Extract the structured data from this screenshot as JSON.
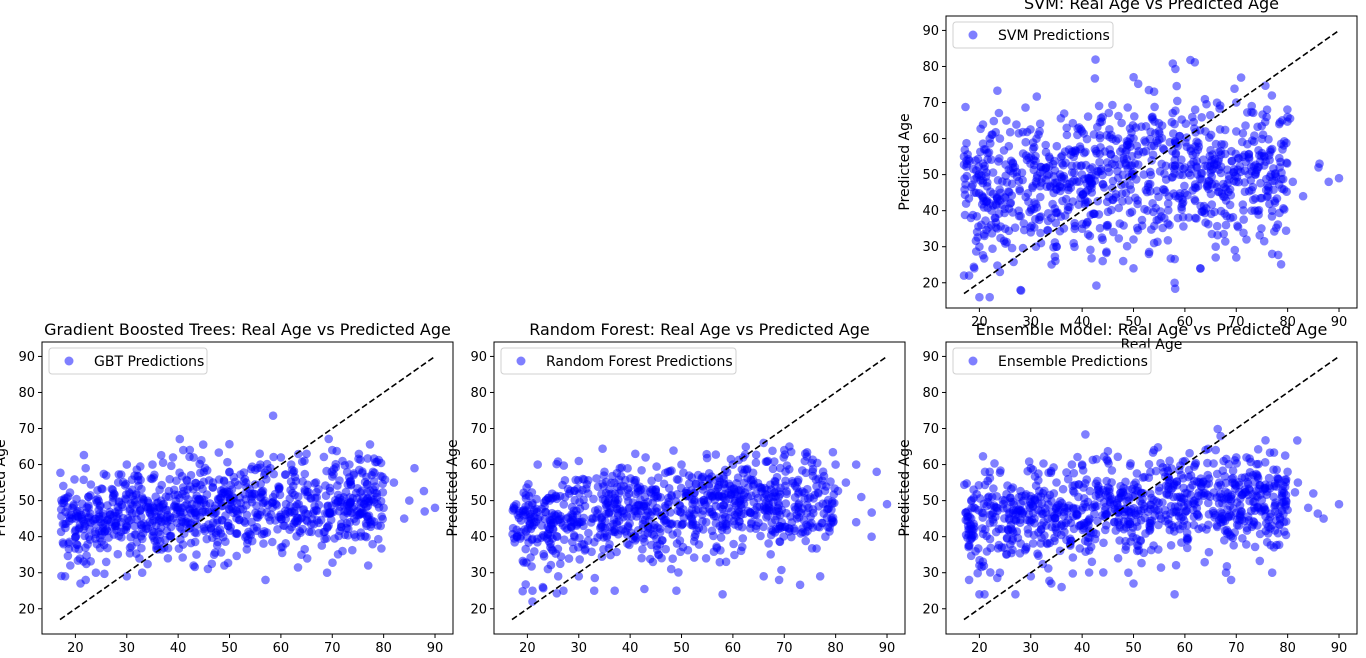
{
  "chart_data": [
    {
      "type": "scatter",
      "panel": "svm",
      "title": "SVM: Real Age vs Predicted Age",
      "xlabel": "Real Age",
      "ylabel": "Predicted Age",
      "legend": "SVM Predictions",
      "legend_position": "top-left",
      "xlim": [
        13.5,
        93.5
      ],
      "ylim": [
        13,
        94
      ],
      "xticks": [
        20,
        30,
        40,
        50,
        60,
        70,
        80,
        90
      ],
      "yticks": [
        20,
        30,
        40,
        50,
        60,
        70,
        80,
        90
      ],
      "diagonal": [
        17,
        90
      ],
      "series_color": "#0000ff",
      "spread": 10,
      "points": [
        [
          20,
          16
        ],
        [
          22,
          16
        ],
        [
          28,
          18
        ],
        [
          58,
          20
        ],
        [
          17,
          22
        ],
        [
          18,
          22
        ],
        [
          24,
          23
        ],
        [
          19,
          24
        ],
        [
          63,
          24
        ],
        [
          50,
          24
        ],
        [
          48,
          26
        ],
        [
          44,
          26
        ],
        [
          70,
          27
        ],
        [
          66,
          27
        ],
        [
          53,
          28
        ],
        [
          77,
          28
        ],
        [
          31,
          30
        ],
        [
          35,
          30
        ],
        [
          32,
          31
        ],
        [
          54,
          31
        ],
        [
          20,
          30
        ],
        [
          66,
          30
        ],
        [
          72,
          32
        ],
        [
          50,
          32
        ],
        [
          21,
          33
        ],
        [
          30,
          34
        ],
        [
          40,
          35
        ],
        [
          25,
          35
        ],
        [
          57,
          36
        ],
        [
          45,
          36
        ],
        [
          68,
          36
        ],
        [
          23,
          38
        ],
        [
          62,
          38
        ],
        [
          34,
          38
        ],
        [
          73,
          40
        ],
        [
          77,
          40
        ],
        [
          26,
          42
        ],
        [
          46,
          43
        ],
        [
          83,
          44
        ],
        [
          59,
          44
        ],
        [
          19,
          45
        ],
        [
          35,
          46
        ],
        [
          68,
          46
        ],
        [
          81,
          48
        ],
        [
          88,
          48
        ],
        [
          90,
          49
        ],
        [
          52,
          50
        ],
        [
          42,
          52
        ],
        [
          60,
          52
        ],
        [
          86,
          52
        ],
        [
          30,
          55
        ],
        [
          75,
          56
        ],
        [
          17,
          55
        ],
        [
          79,
          57
        ],
        [
          54,
          58
        ],
        [
          24,
          60
        ],
        [
          47,
          60
        ],
        [
          22,
          60
        ],
        [
          64,
          62
        ],
        [
          70,
          62
        ],
        [
          37,
          63
        ],
        [
          58,
          64
        ],
        [
          44,
          66
        ],
        [
          62,
          68
        ],
        [
          76,
          68
        ],
        [
          70,
          70
        ],
        [
          54,
          73
        ],
        [
          73,
          69
        ],
        [
          80,
          66
        ]
      ],
      "band": [
        [
          17,
          45
        ],
        [
          20,
          46
        ],
        [
          25,
          46
        ],
        [
          30,
          47
        ],
        [
          35,
          48
        ],
        [
          40,
          49
        ],
        [
          45,
          49
        ],
        [
          50,
          50
        ],
        [
          55,
          51
        ],
        [
          60,
          52
        ],
        [
          65,
          51
        ],
        [
          70,
          50
        ],
        [
          75,
          50
        ],
        [
          80,
          51
        ],
        [
          85,
          51
        ],
        [
          90,
          50
        ]
      ]
    },
    {
      "type": "scatter",
      "panel": "gbt",
      "title": "Gradient Boosted Trees: Real Age vs Predicted Age",
      "xlabel": "",
      "ylabel": "Predicted Age",
      "legend": "GBT Predictions",
      "legend_position": "top-left",
      "xlim": [
        13.5,
        93.5
      ],
      "ylim": [
        13,
        94
      ],
      "xticks": [
        20,
        30,
        40,
        50,
        60,
        70,
        80,
        90
      ],
      "yticks": [
        20,
        30,
        40,
        50,
        60,
        70,
        80,
        90
      ],
      "diagonal": [
        17,
        90
      ],
      "series_color": "#0000ff",
      "spread": 6.5,
      "points": [
        [
          21,
          27
        ],
        [
          18,
          29
        ],
        [
          22,
          28
        ],
        [
          24,
          30
        ],
        [
          30,
          29
        ],
        [
          33,
          30
        ],
        [
          57,
          28
        ],
        [
          69,
          30
        ],
        [
          77,
          32
        ],
        [
          19,
          32
        ],
        [
          43,
          32
        ],
        [
          49,
          32
        ],
        [
          26,
          33
        ],
        [
          38,
          34
        ],
        [
          60,
          37
        ],
        [
          64,
          35
        ],
        [
          72,
          36
        ],
        [
          47,
          35
        ],
        [
          84,
          45
        ],
        [
          88,
          47
        ],
        [
          90,
          48
        ],
        [
          80,
          48
        ],
        [
          85,
          50
        ],
        [
          78,
          53
        ],
        [
          82,
          55
        ],
        [
          86,
          59
        ],
        [
          41,
          64
        ],
        [
          43,
          62
        ],
        [
          39,
          62
        ],
        [
          62,
          60
        ],
        [
          65,
          63
        ],
        [
          70,
          64
        ],
        [
          72,
          61
        ],
        [
          60,
          62
        ],
        [
          22,
          59
        ],
        [
          26,
          57
        ],
        [
          30,
          60
        ],
        [
          35,
          60
        ],
        [
          45,
          58
        ],
        [
          50,
          58
        ],
        [
          56,
          60
        ]
      ],
      "band": [
        [
          17,
          44
        ],
        [
          20,
          44
        ],
        [
          25,
          45
        ],
        [
          30,
          46
        ],
        [
          35,
          46
        ],
        [
          40,
          48
        ],
        [
          45,
          48
        ],
        [
          50,
          48
        ],
        [
          55,
          49
        ],
        [
          60,
          50
        ],
        [
          65,
          49
        ],
        [
          70,
          48
        ],
        [
          75,
          49
        ],
        [
          80,
          50
        ],
        [
          85,
          50
        ],
        [
          90,
          49
        ]
      ]
    },
    {
      "type": "scatter",
      "panel": "rf",
      "title": "Random Forest: Real Age vs Predicted Age",
      "xlabel": "",
      "ylabel": "Predicted Age",
      "legend": "Random Forest Predictions",
      "legend_position": "top-left",
      "xlim": [
        13.5,
        93.5
      ],
      "ylim": [
        13,
        94
      ],
      "xticks": [
        20,
        30,
        40,
        50,
        60,
        70,
        80,
        90
      ],
      "yticks": [
        20,
        30,
        40,
        50,
        60,
        70,
        80,
        90
      ],
      "diagonal": [
        17,
        90
      ],
      "series_color": "#0000ff",
      "spread": 6.5,
      "points": [
        [
          21,
          22
        ],
        [
          21,
          25
        ],
        [
          23,
          26
        ],
        [
          27,
          25
        ],
        [
          26,
          29
        ],
        [
          33,
          25
        ],
        [
          37,
          25
        ],
        [
          49,
          25
        ],
        [
          58,
          24
        ],
        [
          69,
          28
        ],
        [
          66,
          29
        ],
        [
          77,
          29
        ],
        [
          48,
          31
        ],
        [
          24,
          31
        ],
        [
          30,
          29
        ],
        [
          87,
          40
        ],
        [
          84,
          44
        ],
        [
          90,
          49
        ],
        [
          85,
          51
        ],
        [
          82,
          55
        ],
        [
          84,
          60
        ],
        [
          88,
          58
        ],
        [
          80,
          60
        ],
        [
          43,
          62
        ],
        [
          41,
          63
        ],
        [
          60,
          60
        ],
        [
          66,
          66
        ],
        [
          70,
          64
        ],
        [
          71,
          65
        ],
        [
          62,
          62
        ],
        [
          74,
          61
        ],
        [
          30,
          61
        ],
        [
          22,
          60
        ],
        [
          35,
          58
        ],
        [
          50,
          60
        ]
      ],
      "band": [
        [
          17,
          44
        ],
        [
          20,
          43
        ],
        [
          25,
          44
        ],
        [
          30,
          45
        ],
        [
          35,
          46
        ],
        [
          40,
          47
        ],
        [
          45,
          47
        ],
        [
          50,
          48
        ],
        [
          55,
          49
        ],
        [
          60,
          50
        ],
        [
          65,
          50
        ],
        [
          70,
          49
        ],
        [
          75,
          49
        ],
        [
          80,
          50
        ],
        [
          85,
          50
        ],
        [
          90,
          49
        ]
      ]
    },
    {
      "type": "scatter",
      "panel": "ensemble",
      "title": "Ensemble Model: Real Age vs Predicted Age",
      "xlabel": "",
      "ylabel": "Predicted Age",
      "legend": "Ensemble Predictions",
      "legend_position": "top-left",
      "xlim": [
        13.5,
        93.5
      ],
      "ylim": [
        13,
        94
      ],
      "xticks": [
        20,
        30,
        40,
        50,
        60,
        70,
        80,
        90
      ],
      "yticks": [
        20,
        30,
        40,
        50,
        60,
        70,
        80,
        90
      ],
      "diagonal": [
        17,
        90
      ],
      "series_color": "#0000ff",
      "spread": 6.5,
      "points": [
        [
          20,
          24
        ],
        [
          21,
          24
        ],
        [
          27,
          24
        ],
        [
          58,
          24
        ],
        [
          30,
          29
        ],
        [
          34,
          27
        ],
        [
          36,
          26
        ],
        [
          50,
          27
        ],
        [
          49,
          30
        ],
        [
          69,
          28
        ],
        [
          68,
          30
        ],
        [
          77,
          30
        ],
        [
          47,
          34
        ],
        [
          24,
          30
        ],
        [
          18,
          28
        ],
        [
          87,
          45
        ],
        [
          84,
          48
        ],
        [
          90,
          49
        ],
        [
          85,
          52
        ],
        [
          82,
          55
        ],
        [
          80,
          58
        ],
        [
          54,
          64
        ],
        [
          66,
          64
        ],
        [
          70,
          62
        ],
        [
          60,
          61
        ],
        [
          62,
          60
        ],
        [
          72,
          62
        ],
        [
          30,
          59
        ],
        [
          22,
          58
        ],
        [
          40,
          60
        ],
        [
          45,
          61
        ],
        [
          38,
          60
        ]
      ],
      "band": [
        [
          17,
          44
        ],
        [
          20,
          44
        ],
        [
          25,
          45
        ],
        [
          30,
          46
        ],
        [
          35,
          46
        ],
        [
          40,
          47
        ],
        [
          45,
          48
        ],
        [
          50,
          48
        ],
        [
          55,
          49
        ],
        [
          60,
          50
        ],
        [
          65,
          50
        ],
        [
          70,
          49
        ],
        [
          75,
          49
        ],
        [
          80,
          50
        ],
        [
          85,
          50
        ],
        [
          90,
          49
        ]
      ]
    }
  ]
}
